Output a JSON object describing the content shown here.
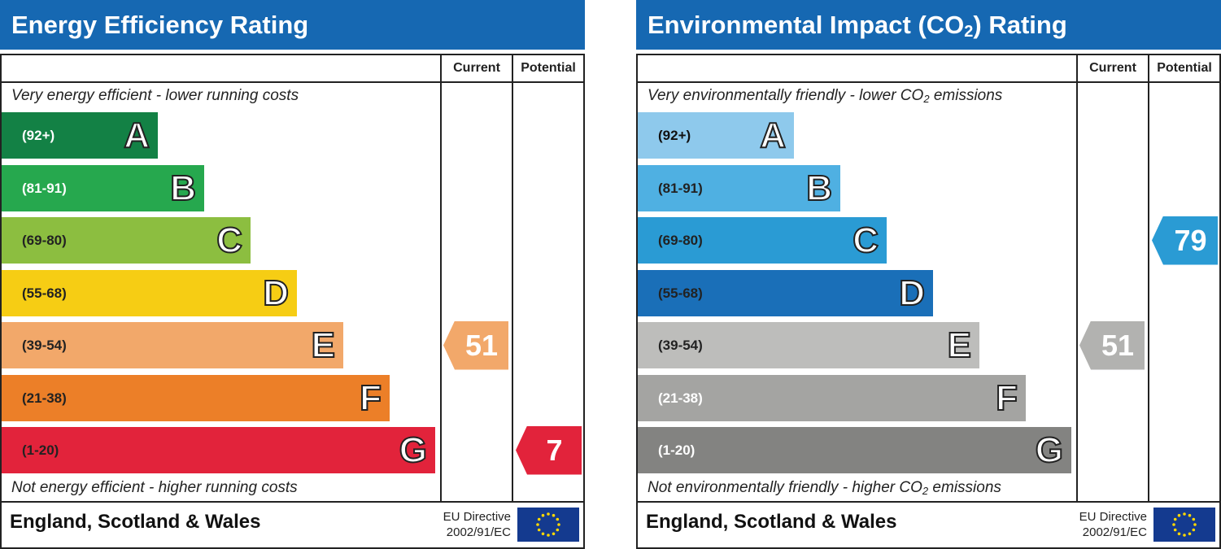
{
  "col_current": "Current",
  "col_potential": "Potential",
  "footer_country": "England, Scotland & Wales",
  "footer_eu_line1": "EU Directive",
  "footer_eu_line2": "2002/91/EC",
  "chart_data": [
    {
      "type": "bar",
      "title": "Energy Efficiency Rating",
      "top_note": "Very energy efficient - lower running costs",
      "bottom_note": "Not energy efficient - higher running costs",
      "bands": [
        {
          "letter": "A",
          "range": "(92+)",
          "color": "#138145",
          "text_color": "#ffffff"
        },
        {
          "letter": "B",
          "range": "(81-91)",
          "color": "#26a84e",
          "text_color": "#ffffff"
        },
        {
          "letter": "C",
          "range": "(69-80)",
          "color": "#8cbe40",
          "text_color": "#222222"
        },
        {
          "letter": "D",
          "range": "(55-68)",
          "color": "#f6cd14",
          "text_color": "#222222"
        },
        {
          "letter": "E",
          "range": "(39-54)",
          "color": "#f2a86a",
          "text_color": "#222222"
        },
        {
          "letter": "F",
          "range": "(21-38)",
          "color": "#ec7f28",
          "text_color": "#222222"
        },
        {
          "letter": "G",
          "range": "(1-20)",
          "color": "#e2233b",
          "text_color": "#222222"
        }
      ],
      "current": {
        "value": 51,
        "color": "#f2a86a"
      },
      "potential": {
        "value": 7,
        "color": "#e2233b"
      }
    },
    {
      "type": "bar",
      "title_main": "Environmental Impact (CO",
      "title_sub": "2",
      "title_end": ") Rating",
      "top_note_main": "Very environmentally friendly - lower CO",
      "top_note_sub": "2",
      "top_note_end": " emissions",
      "bottom_note_main": "Not environmentally friendly - higher CO",
      "bottom_note_sub": "2",
      "bottom_note_end": " emissions",
      "bands": [
        {
          "letter": "A",
          "range": "(92+)",
          "color": "#8ec9ec",
          "text_color": "#111111"
        },
        {
          "letter": "B",
          "range": "(81-91)",
          "color": "#4fb0e2",
          "text_color": "#222222"
        },
        {
          "letter": "C",
          "range": "(69-80)",
          "color": "#2a9bd4",
          "text_color": "#222222"
        },
        {
          "letter": "D",
          "range": "(55-68)",
          "color": "#1a6fb8",
          "text_color": "#222222"
        },
        {
          "letter": "E",
          "range": "(39-54)",
          "color": "#bdbdbb",
          "text_color": "#222222"
        },
        {
          "letter": "F",
          "range": "(21-38)",
          "color": "#a4a4a2",
          "text_color": "#ffffff"
        },
        {
          "letter": "G",
          "range": "(1-20)",
          "color": "#838381",
          "text_color": "#ffffff"
        }
      ],
      "current": {
        "value": 51,
        "color": "#b2b2b0"
      },
      "potential": {
        "value": 79,
        "color": "#2a9bd4"
      }
    }
  ]
}
